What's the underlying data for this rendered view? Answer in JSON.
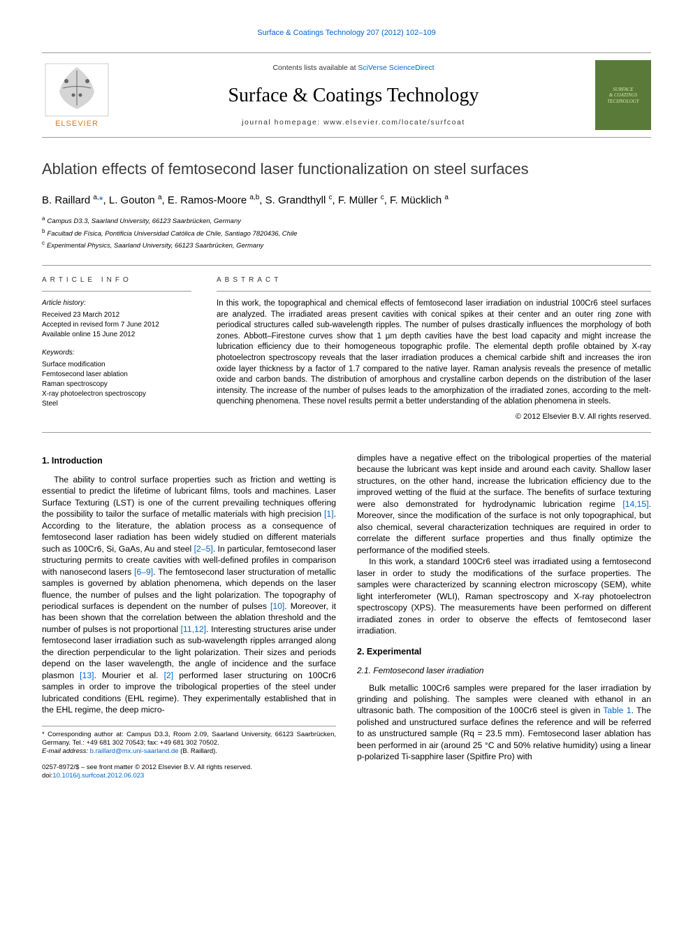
{
  "colors": {
    "link": "#0066cc",
    "text": "#000000",
    "rule": "#999999",
    "cover_bg": "#5a7a3a",
    "cover_fg": "#d4e8a8",
    "elsevier_orange": "#e67817"
  },
  "top_link": "Surface & Coatings Technology 207 (2012) 102–109",
  "header": {
    "contents_prefix": "Contents lists available at ",
    "contents_link": "SciVerse ScienceDirect",
    "journal": "Surface & Coatings Technology",
    "homepage": "journal homepage: www.elsevier.com/locate/surfcoat",
    "publisher": "ELSEVIER",
    "cover_line1": "SURFACE",
    "cover_line2": "& COATINGS",
    "cover_line3": "TECHNOLOGY"
  },
  "title": "Ablation effects of femtosecond laser functionalization on steel surfaces",
  "authors_html": "B. Raillard <sup>a,</sup><a href=\"#\">*</a>, L. Gouton <sup>a</sup>, E. Ramos-Moore <sup>a,b</sup>, S. Grandthyll <sup>c</sup>, F. Müller <sup>c</sup>, F. Mücklich <sup>a</sup>",
  "affiliations": [
    {
      "mark": "a",
      "text": "Campus D3.3, Saarland University, 66123 Saarbrücken, Germany"
    },
    {
      "mark": "b",
      "text": "Facultad de Física, Pontificia Universidad Católica de Chile, Santiago 7820436, Chile"
    },
    {
      "mark": "c",
      "text": "Experimental Physics, Saarland University, 66123 Saarbrücken, Germany"
    }
  ],
  "article_info": {
    "header": "ARTICLE INFO",
    "history_label": "Article history:",
    "history": "Received 23 March 2012\nAccepted in revised form 7 June 2012\nAvailable online 15 June 2012",
    "keywords_label": "Keywords:",
    "keywords": "Surface modification\nFemtosecond laser ablation\nRaman spectroscopy\nX-ray photoelectron spectroscopy\nSteel"
  },
  "abstract": {
    "header": "ABSTRACT",
    "body": "In this work, the topographical and chemical effects of femtosecond laser irradiation on industrial 100Cr6 steel surfaces are analyzed. The irradiated areas present cavities with conical spikes at their center and an outer ring zone with periodical structures called sub-wavelength ripples. The number of pulses drastically influences the morphology of both zones. Abbott–Firestone curves show that 1 μm depth cavities have the best load capacity and might increase the lubrication efficiency due to their homogeneous topographic profile. The elemental depth profile obtained by X-ray photoelectron spectroscopy reveals that the laser irradiation produces a chemical carbide shift and increases the iron oxide layer thickness by a factor of 1.7 compared to the native layer. Raman analysis reveals the presence of metallic oxide and carbon bands. The distribution of amorphous and crystalline carbon depends on the distribution of the laser intensity. The increase of the number of pulses leads to the amorphization of the irradiated zones, according to the melt-quenching phenomena. These novel results permit a better understanding of the ablation phenomena in steels.",
    "copyright": "© 2012 Elsevier B.V. All rights reserved."
  },
  "body": {
    "s1_heading": "1. Introduction",
    "s1_p1": "The ability to control surface properties such as friction and wetting is essential to predict the lifetime of lubricant films, tools and machines. Laser Surface Texturing (LST) is one of the current prevailing techniques offering the possibility to tailor the surface of metallic materials with high precision [1]. According to the literature, the ablation process as a consequence of femtosecond laser radiation has been widely studied on different materials such as 100Cr6, Si, GaAs, Au and steel [2–5]. In particular, femtosecond laser structuring permits to create cavities with well-defined profiles in comparison with nanosecond lasers [6–9]. The femtosecond laser structuration of metallic samples is governed by ablation phenomena, which depends on the laser fluence, the number of pulses and the light polarization. The topography of periodical surfaces is dependent on the number of pulses [10]. Moreover, it has been shown that the correlation between the ablation threshold and the number of pulses is not proportional [11,12]. Interesting structures arise under femtosecond laser irradiation such as sub-wavelength ripples arranged along the direction perpendicular to the light polarization. Their sizes and periods depend on the laser wavelength, the angle of incidence and the surface plasmon [13]. Mourier et al. [2] performed laser structuring on 100Cr6 samples in order to improve the tribological properties of the steel under lubricated conditions (EHL regime). They experimentally established that in the EHL regime, the deep micro-",
    "s1_p2": "dimples have a negative effect on the tribological properties of the material because the lubricant was kept inside and around each cavity. Shallow laser structures, on the other hand, increase the lubrication efficiency due to the improved wetting of the fluid at the surface. The benefits of surface texturing were also demonstrated for hydrodynamic lubrication regime [14,15]. Moreover, since the modification of the surface is not only topographical, but also chemical, several characterization techniques are required in order to correlate the different surface properties and thus finally optimize the performance of the modified steels.",
    "s1_p3": "In this work, a standard 100Cr6 steel was irradiated using a femtosecond laser in order to study the modifications of the surface properties. The samples were characterized by scanning electron microscopy (SEM), white light interferometer (WLI), Raman spectroscopy and X-ray photoelectron spectroscopy (XPS). The measurements have been performed on different irradiated zones in order to observe the effects of femtosecond laser irradiation.",
    "s2_heading": "2. Experimental",
    "s21_heading": "2.1. Femtosecond laser irradiation",
    "s21_p1": "Bulk metallic 100Cr6 samples were prepared for the laser irradiation by grinding and polishing. The samples were cleaned with ethanol in an ultrasonic bath. The composition of the 100Cr6 steel is given in Table 1. The polished and unstructured surface defines the reference and will be referred to as unstructured sample (Rq = 23.5 mm). Femtosecond laser ablation has been performed in air (around 25 °C and 50% relative humidity) using a linear p-polarized Ti-sapphire laser (Spitfire Pro) with",
    "refs": {
      "r1": "[1]",
      "r25": "[2–5]",
      "r69": "[6–9]",
      "r10": "[10]",
      "r1112": "[11,12]",
      "r13": "[13]",
      "r2": "[2]",
      "r1415": "[14,15]",
      "t1": "Table 1"
    }
  },
  "footnote": {
    "corr": "* Corresponding author at: Campus D3.3, Room 2.09, Saarland University, 66123 Saarbrücken, Germany. Tel.: +49 681 302 70543; fax: +49 681 302 70502.",
    "email_label": "E-mail address: ",
    "email": "b.raillard@mx.uni-saarland.de",
    "email_tail": " (B. Raillard)."
  },
  "bottom": {
    "line1": "0257-8972/$ – see front matter © 2012 Elsevier B.V. All rights reserved.",
    "doi_label": "doi:",
    "doi": "10.1016/j.surfcoat.2012.06.023"
  }
}
